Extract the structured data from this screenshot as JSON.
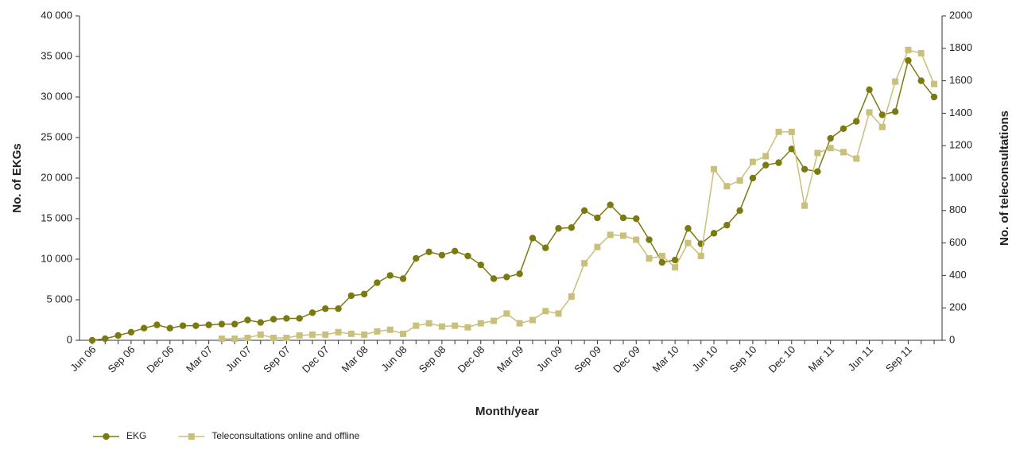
{
  "chart_data": {
    "type": "line",
    "x_label": "Month/year",
    "y_label": "No. of EKGs",
    "y2_label": "No. of teleconsultations",
    "categories": [
      "Jun 06",
      null,
      null,
      "Sep 06",
      null,
      null,
      "Dec 06",
      null,
      null,
      "Mar 07",
      null,
      null,
      "Jun 07",
      null,
      null,
      "Sep 07",
      null,
      null,
      "Dec 07",
      null,
      null,
      "Mar 08",
      null,
      null,
      "Jun 08",
      null,
      null,
      "Sep 08",
      null,
      null,
      "Dec 08",
      null,
      null,
      "Mar 09",
      null,
      null,
      "Jun 09",
      null,
      null,
      "Sep 09",
      null,
      null,
      "Dec 09",
      null,
      null,
      "Mar 10",
      null,
      null,
      "Jun 10",
      null,
      null,
      "Sep 10",
      null,
      null,
      "Dec 10",
      null,
      null,
      "Mar 11",
      null,
      null,
      "Jun 11",
      null,
      null,
      "Sep 11",
      null,
      null
    ],
    "series": [
      {
        "name": "EKG",
        "color": "#7a7a10",
        "marker": "circle",
        "values": [
          0,
          200,
          600,
          1000,
          1500,
          1900,
          1500,
          1800,
          1800,
          1900,
          2000,
          2000,
          2500,
          2200,
          2600,
          2700,
          2700,
          3400,
          3900,
          3900,
          5500,
          5700,
          7100,
          8000,
          7600,
          10100,
          10900,
          10500,
          11000,
          10400,
          9300,
          7600,
          7800,
          8200,
          12600,
          11400,
          13800,
          13900,
          16000,
          15100,
          16700,
          15100,
          15000,
          12400,
          9600,
          9900,
          13800,
          11900,
          13200,
          14200,
          16000,
          20000,
          21600,
          21900,
          23600,
          21100,
          20800,
          24900,
          26100,
          27000,
          30900,
          27800,
          28200,
          34500,
          32000,
          30000
        ]
      },
      {
        "name": "Teleconsultations online and offline",
        "color": "#c9c07c",
        "marker": "square",
        "axis": "y2",
        "values": [
          null,
          null,
          null,
          null,
          null,
          null,
          null,
          null,
          null,
          null,
          10,
          10,
          15,
          35,
          15,
          15,
          30,
          35,
          35,
          50,
          40,
          35,
          55,
          65,
          40,
          90,
          105,
          85,
          90,
          80,
          105,
          120,
          165,
          105,
          125,
          180,
          165,
          270,
          475,
          575,
          650,
          645,
          620,
          505,
          520,
          450,
          600,
          520,
          1055,
          950,
          985,
          1100,
          1135,
          1285,
          1285,
          830,
          1155,
          1185,
          1160,
          1120,
          1405,
          1315,
          1595,
          1790,
          1770,
          1580
        ]
      }
    ],
    "ylim": [
      0,
      40000
    ],
    "yticks": [
      0,
      {
        "value": 5000,
        "label": "5 000"
      },
      {
        "value": 10000,
        "label": "10 000"
      },
      {
        "value": 15000,
        "label": "15 000"
      },
      {
        "value": 20000,
        "label": "20 000"
      },
      {
        "value": 25000,
        "label": "25 000"
      },
      {
        "value": 30000,
        "label": "30 000"
      },
      {
        "value": 35000,
        "label": "35 000"
      },
      {
        "value": 40000,
        "label": "40 000"
      }
    ],
    "y2lim": [
      0,
      2000
    ],
    "y2ticks": [
      0,
      200,
      400,
      600,
      800,
      1000,
      1200,
      1400,
      1600,
      1800,
      2000
    ],
    "legend": "bottom-left"
  }
}
